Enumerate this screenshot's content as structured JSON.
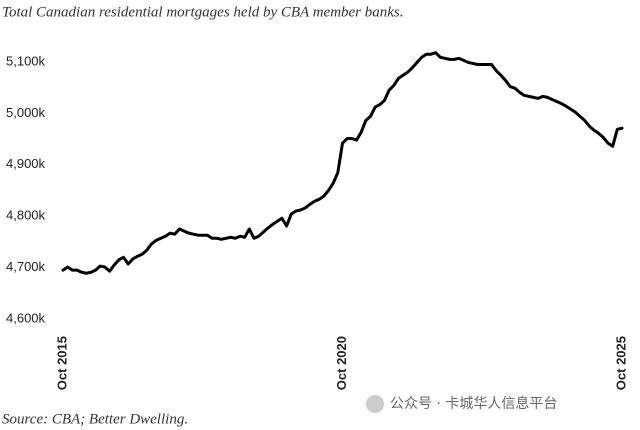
{
  "chart_data": {
    "type": "line",
    "title": "Total Canadian residential mortgages held by CBA member banks.",
    "source": "Source: CBA; Better Dwelling.",
    "watermark": "公众号 · 卡城华人信息平台",
    "color": "#000000",
    "grid": false,
    "ylim": [
      4600,
      5130
    ],
    "yticks": [
      {
        "value": 4600,
        "label": "4,600k"
      },
      {
        "value": 4700,
        "label": "4,700k"
      },
      {
        "value": 4800,
        "label": "4,800k"
      },
      {
        "value": 4900,
        "label": "4,900k"
      },
      {
        "value": 5000,
        "label": "5,000k"
      },
      {
        "value": 5100,
        "label": "5,100k"
      }
    ],
    "categories": [
      "Oct 2015",
      null,
      null,
      null,
      null,
      null,
      null,
      null,
      null,
      null,
      null,
      null,
      null,
      null,
      null,
      null,
      null,
      null,
      null,
      null,
      null,
      null,
      null,
      null,
      null,
      null,
      null,
      null,
      null,
      null,
      null,
      null,
      null,
      null,
      null,
      null,
      null,
      null,
      null,
      null,
      null,
      null,
      null,
      null,
      null,
      null,
      null,
      null,
      null,
      null,
      null,
      null,
      null,
      null,
      null,
      null,
      null,
      null,
      null,
      null,
      "Oct 2020",
      null,
      null,
      null,
      null,
      null,
      null,
      null,
      null,
      null,
      null,
      null,
      null,
      null,
      null,
      null,
      null,
      null,
      null,
      null,
      null,
      null,
      null,
      null,
      null,
      null,
      null,
      null,
      null,
      null,
      null,
      null,
      null,
      null,
      null,
      null,
      null,
      null,
      null,
      null,
      null,
      null,
      null,
      null,
      null,
      null,
      null,
      null,
      null,
      null,
      null,
      null,
      null,
      null,
      null,
      null,
      null,
      null,
      null,
      null,
      "Oct 2025"
    ],
    "values": [
      4695,
      4701,
      4695,
      4695,
      4691,
      4689,
      4691,
      4695,
      4703,
      4701,
      4693,
      4705,
      4715,
      4720,
      4707,
      4717,
      4722,
      4726,
      4734,
      4746,
      4753,
      4757,
      4761,
      4767,
      4765,
      4775,
      4771,
      4767,
      4765,
      4763,
      4763,
      4763,
      4757,
      4757,
      4755,
      4757,
      4759,
      4757,
      4761,
      4759,
      4775,
      4757,
      4761,
      4769,
      4777,
      4784,
      4790,
      4796,
      4781,
      4804,
      4810,
      4812,
      4816,
      4823,
      4829,
      4833,
      4839,
      4850,
      4864,
      4885,
      4942,
      4951,
      4951,
      4948,
      4963,
      4986,
      4994,
      5012,
      5017,
      5025,
      5045,
      5054,
      5068,
      5074,
      5080,
      5089,
      5099,
      5109,
      5115,
      5115,
      5118,
      5109,
      5107,
      5105,
      5105,
      5107,
      5103,
      5099,
      5097,
      5095,
      5095,
      5095,
      5095,
      5083,
      5074,
      5064,
      5052,
      5049,
      5041,
      5035,
      5033,
      5031,
      5029,
      5033,
      5031,
      5027,
      5023,
      5019,
      5014,
      5008,
      5002,
      4994,
      4986,
      4975,
      4967,
      4961,
      4953,
      4942,
      4936,
      4969,
      4971
    ]
  }
}
